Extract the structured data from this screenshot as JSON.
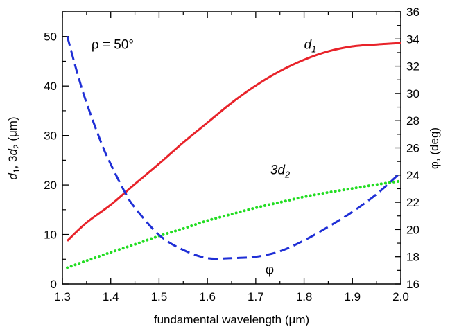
{
  "chart_data": {
    "type": "line",
    "xlabel": "fundamental wavelength  (μm)",
    "xlim": [
      1.3,
      2.0
    ],
    "x_ticks": [
      "1.3",
      "1.4",
      "1.5",
      "1.6",
      "1.7",
      "1.8",
      "1.9",
      "2.0"
    ],
    "ylabel_left": {
      "base": "d",
      "sub1": "1",
      "sep": ", 3",
      "base2": "d",
      "sub2": "2",
      "unit": "  (μm)"
    },
    "ylim_left": [
      0,
      55
    ],
    "y_ticks_left": [
      "0",
      "10",
      "20",
      "30",
      "40",
      "50"
    ],
    "ylabel_right": "φ, (deg)",
    "ylim_right": [
      16,
      36
    ],
    "y_ticks_right": [
      "16",
      "18",
      "20",
      "22",
      "24",
      "26",
      "28",
      "30",
      "32",
      "34",
      "36"
    ],
    "grid": false,
    "legend": "none",
    "series": [
      {
        "axis": "left",
        "style": "solid",
        "color": "#e8232a",
        "x": [
          1.31,
          1.35,
          1.4,
          1.45,
          1.5,
          1.55,
          1.6,
          1.65,
          1.7,
          1.75,
          1.8,
          1.85,
          1.9,
          1.95,
          2.0
        ],
        "y": [
          8.7,
          12.4,
          16.0,
          20.2,
          24.3,
          28.6,
          32.6,
          36.6,
          40.1,
          43.0,
          45.3,
          47.0,
          48.0,
          48.4,
          48.7
        ]
      },
      {
        "axis": "left",
        "style": "dotted",
        "color": "#22dd22",
        "x": [
          1.31,
          1.35,
          1.4,
          1.45,
          1.5,
          1.55,
          1.6,
          1.65,
          1.7,
          1.75,
          1.8,
          1.85,
          1.9,
          1.95,
          2.0
        ],
        "y": [
          3.3,
          4.7,
          6.4,
          8.0,
          9.7,
          11.2,
          12.8,
          14.1,
          15.4,
          16.5,
          17.6,
          18.5,
          19.3,
          20.1,
          20.8
        ]
      },
      {
        "axis": "right",
        "style": "dashed",
        "color": "#1f2fd6",
        "x": [
          1.31,
          1.33,
          1.35,
          1.38,
          1.4,
          1.43,
          1.45,
          1.5,
          1.55,
          1.6,
          1.65,
          1.7,
          1.75,
          1.8,
          1.85,
          1.9,
          1.95,
          2.0
        ],
        "y": [
          34.2,
          31.6,
          29.3,
          26.4,
          24.8,
          22.7,
          21.6,
          19.6,
          18.5,
          17.9,
          17.9,
          18.0,
          18.4,
          19.2,
          20.2,
          21.3,
          22.6,
          24.2
        ]
      }
    ],
    "annotations": [
      {
        "text": "ρ = 50°",
        "at": [
          1.36,
          47.5
        ],
        "style": "plain"
      },
      {
        "text": "d",
        "sub": "1",
        "at": [
          1.8,
          47.5
        ],
        "style": "italic"
      },
      {
        "text": "3d",
        "sub": "2",
        "at": [
          1.73,
          22.2
        ],
        "style": "italic"
      },
      {
        "text": "φ",
        "at": [
          1.72,
          2.0
        ],
        "style": "plain"
      }
    ]
  }
}
